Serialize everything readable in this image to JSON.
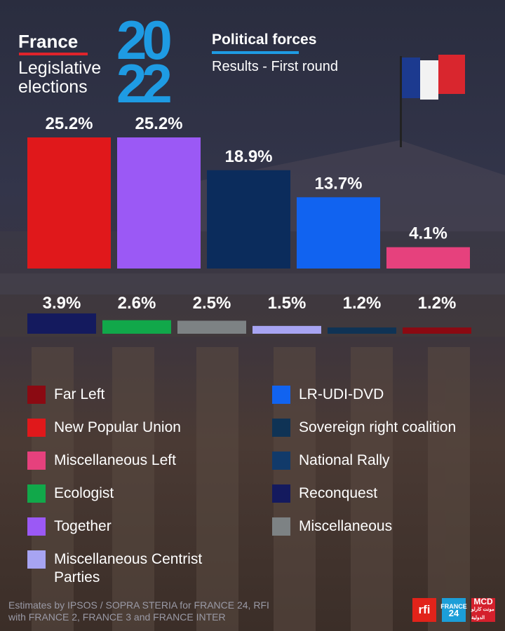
{
  "header": {
    "country": "France",
    "subtitle": "Legislative elections",
    "year_top": "20",
    "year_bottom": "22",
    "section_title": "Political forces",
    "section_subtitle": "Results - First round"
  },
  "chart_data": {
    "type": "bar",
    "unit": "%",
    "row1": [
      {
        "value": 25.2,
        "label": "25.2%",
        "color": "#e0181b",
        "party": "New Popular Union"
      },
      {
        "value": 25.2,
        "label": "25.2%",
        "color": "#9b59f5",
        "party": "Together"
      },
      {
        "value": 18.9,
        "label": "18.9%",
        "color": "#0b2c5c",
        "party": "National Rally"
      },
      {
        "value": 13.7,
        "label": "13.7%",
        "color": "#1163f0",
        "party": "LR-UDI-DVD"
      },
      {
        "value": 4.1,
        "label": "4.1%",
        "color": "#e6417d",
        "party": "Miscellaneous Left"
      }
    ],
    "row2": [
      {
        "value": 3.9,
        "label": "3.9%",
        "color": "#141a5e",
        "party": "Reconquest"
      },
      {
        "value": 2.6,
        "label": "2.6%",
        "color": "#11a84a",
        "party": "Ecologist"
      },
      {
        "value": 2.5,
        "label": "2.5%",
        "color": "#7d8284",
        "party": "Miscellaneous"
      },
      {
        "value": 1.5,
        "label": "1.5%",
        "color": "#a7a4f2",
        "party": "Miscellaneous Centrist Parties"
      },
      {
        "value": 1.2,
        "label": "1.2%",
        "color": "#0f3355",
        "party": "Sovereign right coalition"
      },
      {
        "value": 1.2,
        "label": "1.2%",
        "color": "#8b0a12",
        "party": "Far Left"
      }
    ]
  },
  "legend": {
    "left": [
      {
        "label": "Far Left",
        "color": "#8b0a12"
      },
      {
        "label": "New Popular Union",
        "color": "#e0181b"
      },
      {
        "label": "Miscellaneous Left",
        "color": "#e6417d"
      },
      {
        "label": "Ecologist",
        "color": "#11a84a"
      },
      {
        "label": "Together",
        "color": "#9b59f5"
      },
      {
        "label": "Miscellaneous Centrist Parties",
        "color": "#a7a4f2"
      }
    ],
    "right": [
      {
        "label": "LR-UDI-DVD",
        "color": "#1163f0"
      },
      {
        "label": "Sovereign right coalition",
        "color": "#0f3355"
      },
      {
        "label": "National Rally",
        "color": "#113a6a"
      },
      {
        "label": "Reconquest",
        "color": "#141a5e"
      },
      {
        "label": "Miscellaneous",
        "color": "#7d8284"
      }
    ]
  },
  "footer": {
    "line1": "Estimates by IPSOS / SOPRA STERIA for FRANCE 24, RFI",
    "line2": "with FRANCE 2, FRANCE 3 and FRANCE INTER"
  },
  "logos": {
    "rfi": "rfi",
    "france24_top": "FRANCE",
    "france24_bottom": "24",
    "mcd": "MCD",
    "mcd_sub": "مونت كارلو الدولية"
  }
}
